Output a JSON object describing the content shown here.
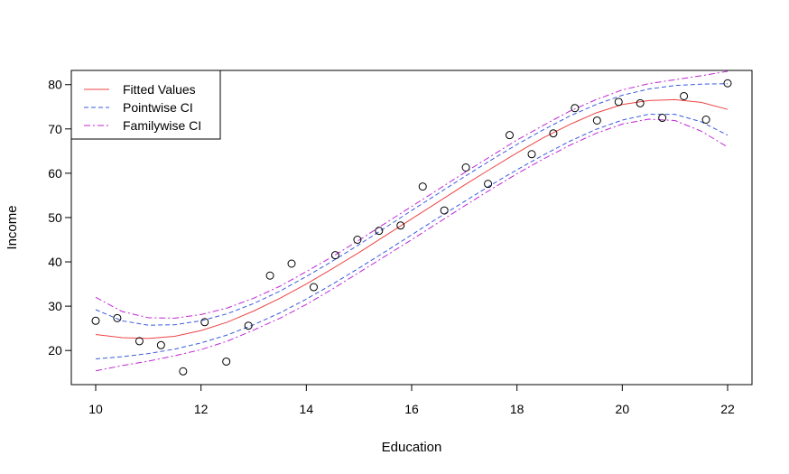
{
  "chart_data": {
    "type": "scatter",
    "xlabel": "Education",
    "ylabel": "Income",
    "xlim": [
      10,
      22
    ],
    "ylim": [
      12.5,
      83
    ],
    "x_ticks": [
      10,
      12,
      14,
      16,
      18,
      20,
      22
    ],
    "y_ticks": [
      20,
      30,
      40,
      50,
      60,
      70,
      80
    ],
    "legend_position": "top-left",
    "points": {
      "x": [
        10.0,
        10.41,
        10.83,
        11.24,
        11.66,
        12.07,
        12.48,
        12.9,
        13.31,
        13.72,
        14.14,
        14.55,
        14.97,
        15.38,
        15.79,
        16.21,
        16.62,
        17.03,
        17.45,
        17.86,
        18.28,
        18.69,
        19.1,
        19.52,
        19.93,
        20.34,
        20.76,
        21.17,
        21.59,
        22.0
      ],
      "y": [
        26.7,
        27.3,
        22.1,
        21.2,
        15.3,
        26.4,
        17.5,
        25.6,
        36.9,
        39.6,
        34.3,
        41.5,
        45.0,
        47.0,
        48.2,
        57.0,
        51.6,
        61.3,
        57.6,
        68.6,
        64.3,
        69.0,
        74.7,
        71.9,
        76.1,
        75.8,
        72.5,
        77.4,
        72.1,
        80.3
      ],
      "color": "#000000"
    },
    "series": [
      {
        "name": "Fitted Values",
        "color": "#ef4444",
        "style": "solid",
        "x": [
          10,
          10.5,
          11,
          11.5,
          12,
          12.5,
          13,
          13.5,
          14,
          14.5,
          15,
          15.5,
          16,
          16.5,
          17,
          17.5,
          18,
          18.5,
          19,
          19.5,
          20,
          20.5,
          21,
          21.5,
          22
        ],
        "values": [
          23.6,
          22.9,
          22.7,
          23.2,
          24.5,
          26.4,
          28.9,
          31.8,
          35.0,
          38.5,
          42.1,
          45.9,
          49.7,
          53.5,
          57.3,
          61.0,
          64.6,
          68.0,
          71.0,
          73.6,
          75.5,
          76.4,
          76.6,
          76.0,
          74.4
        ]
      },
      {
        "name": "Pointwise CI",
        "color": "#3b5bdb",
        "style": "dashed",
        "x": [
          10,
          10.5,
          11,
          11.5,
          12,
          12.5,
          13,
          13.5,
          14,
          14.5,
          15,
          15.5,
          16,
          16.5,
          17,
          17.5,
          18,
          18.5,
          19,
          19.5,
          20,
          20.5,
          21,
          21.5,
          22
        ],
        "values": [
          29.2,
          26.7,
          25.7,
          25.8,
          26.7,
          28.3,
          30.6,
          33.4,
          36.7,
          40.2,
          43.9,
          47.7,
          51.6,
          55.4,
          59.2,
          62.9,
          66.5,
          69.8,
          72.9,
          75.5,
          77.6,
          79.0,
          79.8,
          80.1,
          80.2
        ],
        "lower": [
          18.1,
          18.6,
          19.3,
          20.3,
          21.7,
          23.5,
          25.8,
          28.5,
          31.6,
          35.0,
          38.6,
          42.3,
          46.1,
          49.9,
          53.6,
          57.3,
          60.8,
          64.1,
          67.2,
          69.9,
          72.0,
          73.3,
          73.3,
          71.6,
          68.6
        ]
      },
      {
        "name": "Familywise CI",
        "color": "#c026d3",
        "style": "dashdot",
        "x": [
          10,
          10.5,
          11,
          11.5,
          12,
          12.5,
          13,
          13.5,
          14,
          14.5,
          15,
          15.5,
          16,
          16.5,
          17,
          17.5,
          18,
          18.5,
          19,
          19.5,
          20,
          20.5,
          21,
          21.5,
          22
        ],
        "values": [
          32.0,
          28.8,
          27.4,
          27.3,
          28.1,
          29.6,
          31.8,
          34.5,
          37.8,
          41.2,
          44.9,
          48.7,
          52.5,
          56.3,
          60.1,
          63.8,
          67.5,
          70.8,
          74.0,
          76.6,
          78.8,
          80.2,
          81.1,
          82.0,
          83.0
        ],
        "lower": [
          15.4,
          16.6,
          17.6,
          18.8,
          20.2,
          22.1,
          24.6,
          27.3,
          30.4,
          33.9,
          37.6,
          41.3,
          45.0,
          48.8,
          52.6,
          56.3,
          59.9,
          63.2,
          66.3,
          69.0,
          71.1,
          72.2,
          71.9,
          69.5,
          65.9
        ]
      }
    ]
  }
}
